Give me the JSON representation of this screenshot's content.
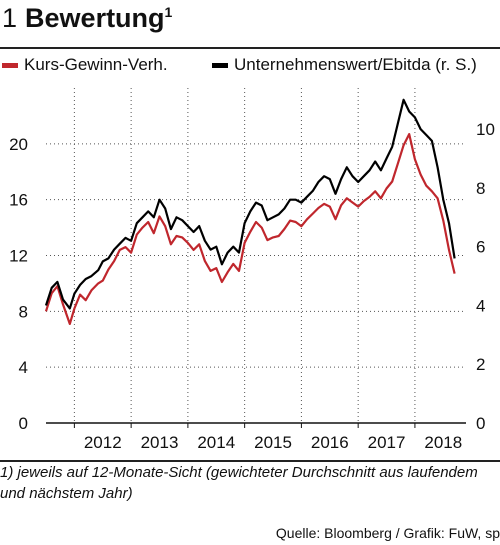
{
  "header": {
    "number": "1",
    "title": "Bewertung",
    "title_sup": "1"
  },
  "footnote": "1) jeweils auf 12-Monate-Sicht (gewichteter Durchschnitt aus laufendem und nächstem Jahr)",
  "source": "Quelle: Bloomberg / Grafik: FuW, sp",
  "colors": {
    "kgv": "#c0272d",
    "ev": "#000000"
  },
  "chart_data": {
    "type": "line",
    "title": "Bewertung",
    "legend": [
      "Kurs-Gewinn-Verh.",
      "Unternehmenswert/Ebitda (r. S.)"
    ],
    "legend_placement": "top",
    "x_tick_labels": [
      "2012",
      "2013",
      "2014",
      "2015",
      "2016",
      "2017",
      "2018"
    ],
    "xlim": [
      2011.5,
      2018.9
    ],
    "ylim_left": [
      0,
      24
    ],
    "yticks_left": [
      "0",
      "4",
      "8",
      "12",
      "16",
      "20"
    ],
    "ylim_right": [
      0,
      11.4
    ],
    "yticks_right": [
      "0",
      "2",
      "4",
      "6",
      "8",
      "10"
    ],
    "grid": "dotted",
    "series": [
      {
        "name": "Kurs-Gewinn-Verh.",
        "axis": "left",
        "color": "#c0272d",
        "x": [
          2011.5,
          2011.6,
          2011.7,
          2011.8,
          2011.92,
          2012.0,
          2012.1,
          2012.2,
          2012.3,
          2012.42,
          2012.5,
          2012.6,
          2012.7,
          2012.8,
          2012.9,
          2013.0,
          2013.1,
          2013.2,
          2013.3,
          2013.4,
          2013.5,
          2013.6,
          2013.7,
          2013.8,
          2013.9,
          2014.0,
          2014.1,
          2014.2,
          2014.3,
          2014.4,
          2014.5,
          2014.6,
          2014.7,
          2014.8,
          2014.9,
          2015.0,
          2015.1,
          2015.2,
          2015.3,
          2015.4,
          2015.5,
          2015.6,
          2015.7,
          2015.8,
          2015.9,
          2016.0,
          2016.1,
          2016.2,
          2016.3,
          2016.4,
          2016.5,
          2016.6,
          2016.7,
          2016.8,
          2016.9,
          2017.0,
          2017.1,
          2017.2,
          2017.3,
          2017.4,
          2017.5,
          2017.6,
          2017.7,
          2017.8,
          2017.9,
          2018.0,
          2018.1,
          2018.2,
          2018.3,
          2018.4,
          2018.5,
          2018.6,
          2018.7
        ],
        "values": [
          8,
          9.3,
          9.8,
          8.5,
          7.1,
          8.2,
          9.2,
          8.8,
          9.5,
          10,
          10.2,
          11,
          11.6,
          12.4,
          12.6,
          12.2,
          13.5,
          14,
          14.4,
          13.6,
          14.8,
          14.1,
          12.8,
          13.4,
          13.3,
          12.9,
          12.4,
          12.8,
          11.6,
          10.9,
          11.1,
          10.1,
          10.8,
          11.4,
          10.9,
          12.9,
          13.7,
          14.4,
          14,
          13.1,
          13.3,
          13.4,
          13.9,
          14.5,
          14.4,
          14.1,
          14.6,
          15,
          15.4,
          15.7,
          15.5,
          14.6,
          15.6,
          16.1,
          15.8,
          15.5,
          15.9,
          16.2,
          16.6,
          16.1,
          16.8,
          17.3,
          18.6,
          19.9,
          20.7,
          18.9,
          17.8,
          17,
          16.6,
          16.1,
          14.5,
          12.4,
          10.7
        ]
      },
      {
        "name": "Unternehmenswert/Ebitda (r. S.)",
        "axis": "right",
        "color": "#000000",
        "x": [
          2011.5,
          2011.6,
          2011.7,
          2011.8,
          2011.92,
          2012.0,
          2012.1,
          2012.2,
          2012.3,
          2012.42,
          2012.5,
          2012.6,
          2012.7,
          2012.8,
          2012.9,
          2013.0,
          2013.1,
          2013.2,
          2013.3,
          2013.4,
          2013.5,
          2013.6,
          2013.7,
          2013.8,
          2013.9,
          2014.0,
          2014.1,
          2014.2,
          2014.3,
          2014.4,
          2014.5,
          2014.6,
          2014.7,
          2014.8,
          2014.9,
          2015.0,
          2015.1,
          2015.2,
          2015.3,
          2015.4,
          2015.5,
          2015.6,
          2015.7,
          2015.8,
          2015.9,
          2016.0,
          2016.1,
          2016.2,
          2016.3,
          2016.4,
          2016.5,
          2016.6,
          2016.7,
          2016.8,
          2016.9,
          2017.0,
          2017.1,
          2017.2,
          2017.3,
          2017.4,
          2017.5,
          2017.6,
          2017.7,
          2017.8,
          2017.9,
          2018.0,
          2018.1,
          2018.2,
          2018.3,
          2018.4,
          2018.5,
          2018.6,
          2018.7
        ],
        "values": [
          4.0,
          4.6,
          4.8,
          4.2,
          3.9,
          4.4,
          4.7,
          4.9,
          5.0,
          5.2,
          5.5,
          5.6,
          5.9,
          6.1,
          6.3,
          6.2,
          6.8,
          7.0,
          7.2,
          7.0,
          7.6,
          7.3,
          6.6,
          7.0,
          6.9,
          6.7,
          6.5,
          6.7,
          6.2,
          5.9,
          6.0,
          5.4,
          5.8,
          6.0,
          5.8,
          6.8,
          7.2,
          7.5,
          7.4,
          6.9,
          7.0,
          7.1,
          7.3,
          7.6,
          7.6,
          7.5,
          7.7,
          7.9,
          8.2,
          8.4,
          8.3,
          7.8,
          8.3,
          8.7,
          8.4,
          8.2,
          8.4,
          8.6,
          8.9,
          8.6,
          9.0,
          9.4,
          10.2,
          11.0,
          10.6,
          10.4,
          10.0,
          9.8,
          9.6,
          8.7,
          7.6,
          6.8,
          5.6
        ]
      }
    ]
  }
}
